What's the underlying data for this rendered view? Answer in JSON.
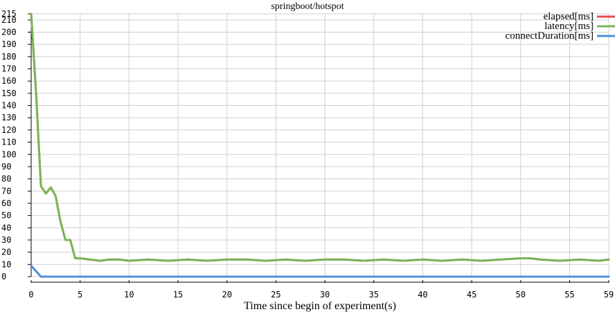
{
  "chart_data": {
    "type": "line",
    "title": "springboot/hotspot",
    "xlabel": "Time since begin of experiment(s)",
    "ylabel": "",
    "xlim": [
      0,
      59
    ],
    "ylim": [
      0,
      215
    ],
    "x_ticks": [
      0,
      5,
      10,
      15,
      20,
      25,
      30,
      35,
      40,
      45,
      50,
      55,
      59
    ],
    "y_ticks": [
      0,
      10,
      20,
      30,
      40,
      50,
      60,
      70,
      80,
      90,
      100,
      110,
      120,
      130,
      140,
      150,
      160,
      170,
      180,
      190,
      200,
      210,
      215
    ],
    "grid": true,
    "legend_position": "top-right",
    "series": [
      {
        "name": "elapsed[ms]",
        "color": "#e8474e",
        "x": [
          0,
          0.5,
          1,
          1.5,
          2,
          2.5,
          3,
          3.5,
          4,
          4.5,
          5,
          6,
          7,
          8,
          9,
          10,
          12,
          14,
          16,
          18,
          20,
          22,
          24,
          26,
          28,
          30,
          32,
          34,
          36,
          38,
          40,
          42,
          44,
          46,
          48,
          50,
          51,
          52,
          54,
          56,
          58,
          59
        ],
        "values": [
          215,
          150,
          74,
          68,
          73,
          66,
          45,
          30,
          30,
          15,
          15,
          14,
          13,
          14,
          14,
          13,
          14,
          13,
          14,
          13,
          14,
          14,
          13,
          14,
          13,
          14,
          14,
          13,
          14,
          13,
          14,
          13,
          14,
          13,
          14,
          15,
          15,
          14,
          13,
          14,
          13,
          14
        ]
      },
      {
        "name": "latency[ms]",
        "color": "#77b757",
        "x": [
          0,
          0.5,
          1,
          1.5,
          2,
          2.5,
          3,
          3.5,
          4,
          4.5,
          5,
          6,
          7,
          8,
          9,
          10,
          12,
          14,
          16,
          18,
          20,
          22,
          24,
          26,
          28,
          30,
          32,
          34,
          36,
          38,
          40,
          42,
          44,
          46,
          48,
          50,
          51,
          52,
          54,
          56,
          58,
          59
        ],
        "values": [
          215,
          150,
          74,
          68,
          73,
          66,
          45,
          30,
          30,
          15,
          15,
          14,
          13,
          14,
          14,
          13,
          14,
          13,
          14,
          13,
          14,
          14,
          13,
          14,
          13,
          14,
          14,
          13,
          14,
          13,
          14,
          13,
          14,
          13,
          14,
          15,
          15,
          14,
          13,
          14,
          13,
          14
        ]
      },
      {
        "name": "connectDuration[ms]",
        "color": "#4a90d9",
        "x": [
          0,
          1,
          59
        ],
        "values": [
          9,
          0,
          0
        ]
      }
    ]
  }
}
